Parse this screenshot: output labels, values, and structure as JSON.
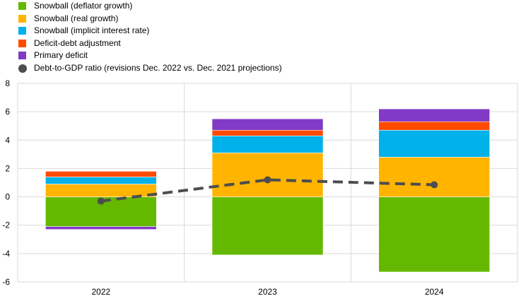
{
  "chart_data": {
    "type": "bar",
    "stacked": true,
    "categories": [
      "2022",
      "2023",
      "2024"
    ],
    "series": [
      {
        "name": "Snowball (deflator growth)",
        "kind": "bar",
        "color": "#65b800",
        "values": [
          -2.1,
          -4.1,
          -5.3
        ]
      },
      {
        "name": "Snowball (real growth)",
        "kind": "bar",
        "color": "#ffb400",
        "values": [
          0.9,
          3.1,
          2.8
        ]
      },
      {
        "name": "Snowball (implicit interest rate)",
        "kind": "bar",
        "color": "#00b1ea",
        "values": [
          0.5,
          1.2,
          1.9
        ]
      },
      {
        "name": "Deficit-debt adjustment",
        "kind": "bar",
        "color": "#ff4b00",
        "values": [
          0.4,
          0.4,
          0.6
        ]
      },
      {
        "name": "Primary deficit",
        "kind": "bar",
        "color": "#8139c6",
        "values": [
          -0.2,
          0.8,
          0.9
        ]
      },
      {
        "name": "Debt-to-GDP ratio (revisions Dec. 2022 vs. Dec. 2021 projections)",
        "kind": "line",
        "color": "#4d4d4d",
        "values": [
          -0.3,
          1.2,
          0.85
        ]
      }
    ],
    "legend_order": [
      0,
      1,
      2,
      3,
      4,
      5
    ],
    "yticks": [
      "8",
      "6",
      "4",
      "2",
      "0",
      "-2",
      "-4",
      "-6"
    ],
    "ylim": [
      -6,
      8
    ],
    "xlabel": "",
    "ylabel": "",
    "grid": true,
    "legend_position": "top-left"
  }
}
